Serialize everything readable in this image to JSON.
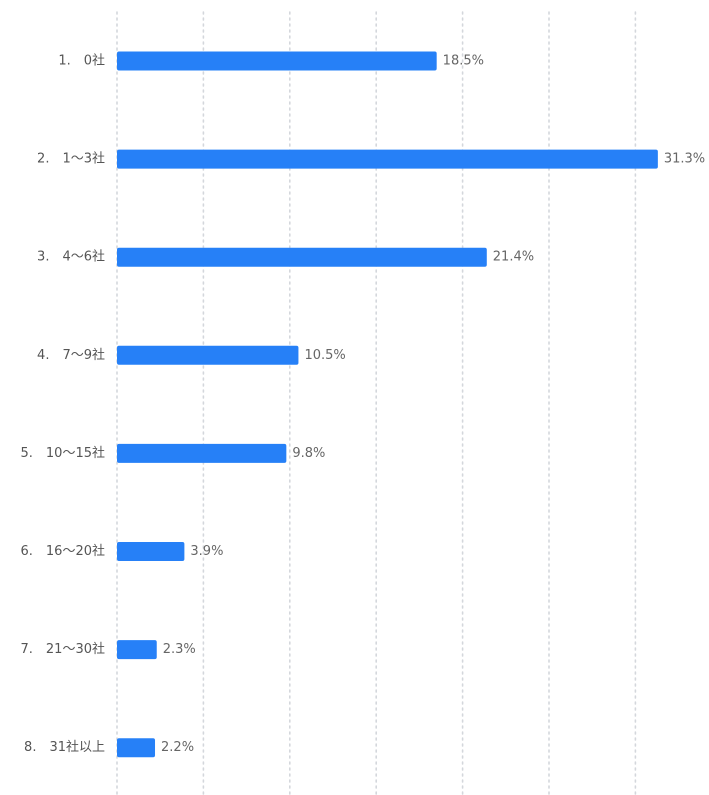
{
  "chart_data": {
    "type": "bar",
    "orientation": "horizontal",
    "title": "",
    "xlabel": "",
    "ylabel": "",
    "categories": [
      "1.　0社",
      "2.　1〜3社",
      "3.　4〜6社",
      "4.　7〜9社",
      "5.　10〜15社",
      "6.　16〜20社",
      "7.　21〜30社",
      "8.　31社以上"
    ],
    "values": [
      18.5,
      31.3,
      21.4,
      10.5,
      9.8,
      3.9,
      2.3,
      2.2
    ],
    "value_labels": [
      "18.5%",
      "31.3%",
      "21.4%",
      "10.5%",
      "9.8%",
      "3.9%",
      "2.3%",
      "2.2%"
    ],
    "unit": "%",
    "xlim": [
      0,
      35
    ],
    "grid": "vertical-dotted",
    "legend": "none",
    "bar_color": "#2680f7",
    "grid_color": "#d4d7dc",
    "label_color": "#555555",
    "value_label_color": "#666666"
  }
}
